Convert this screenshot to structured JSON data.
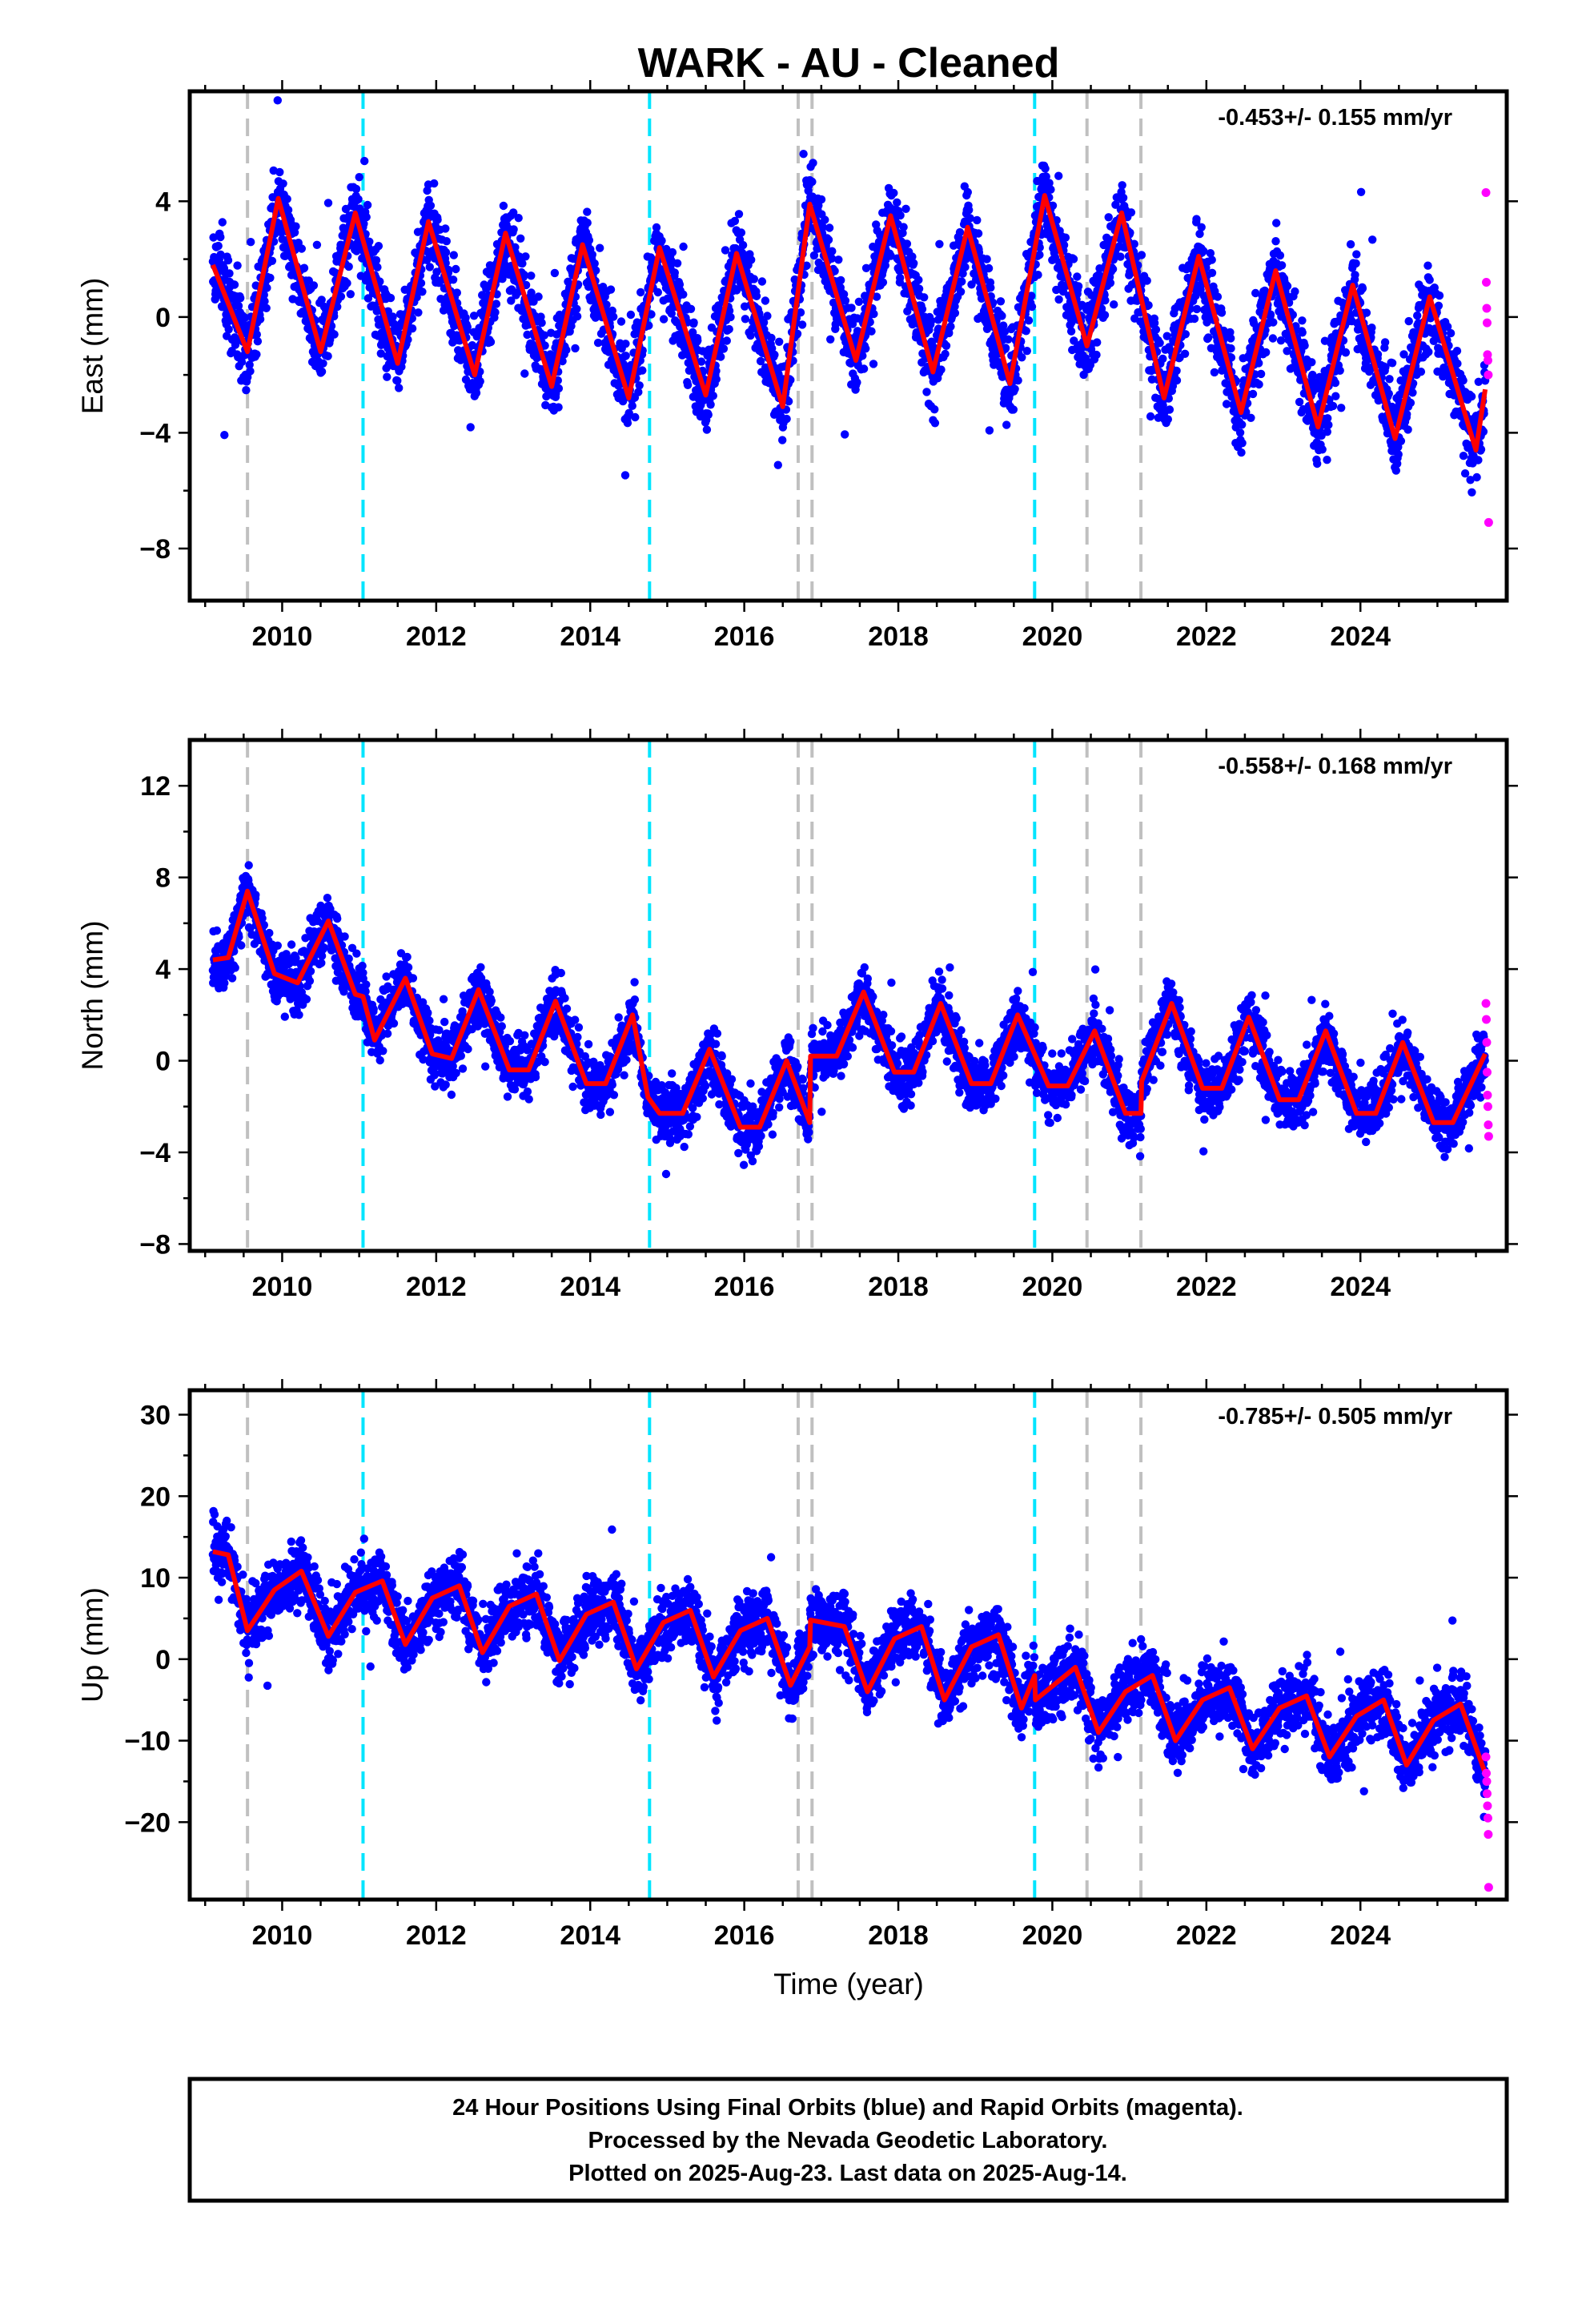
{
  "title": "WARK  - AU - Cleaned",
  "xlabel": "Time (year)",
  "x_tick_labels": [
    "2010",
    "2012",
    "2014",
    "2016",
    "2018",
    "2020",
    "2022",
    "2024"
  ],
  "footer": {
    "line1": "24 Hour Positions Using Final Orbits (blue) and Rapid Orbits (magenta).",
    "line2": "Processed by the Nevada Geodetic Laboratory.",
    "line3": "Plotted on 2025-Aug-23. Last data on 2025-Aug-14."
  },
  "colors": {
    "final_points": "#0000ff",
    "rapid_points": "#ff00ff",
    "model_line": "#ff0000",
    "antenna_change": "#c0c0c0",
    "earthquake": "#00e5ff"
  },
  "chart_data": [
    {
      "type": "scatter",
      "ylabel": "East (mm)",
      "rate_label": "-0.453+/- 0.155 mm/yr",
      "xlim": [
        2008.8,
        2025.9
      ],
      "ylim": [
        -9.8,
        7.8
      ],
      "y_ticks": [
        -8,
        -4,
        0,
        4
      ],
      "x_ticks": [
        2010,
        2012,
        2014,
        2016,
        2018,
        2020,
        2022,
        2024
      ],
      "data_start": 2009.1,
      "data_end": 2025.62,
      "trend_rate_mm_per_yr": -0.453,
      "seasonal_amplitude": 2.6,
      "noise_sigma": 1.25,
      "offsets": [
        {
          "epoch": 2016.85,
          "mm": 2.0
        }
      ],
      "model_curve": {
        "x": [
          2009.1,
          2009.55,
          2009.95,
          2010.5,
          2010.95,
          2011.5,
          2011.9,
          2012.5,
          2012.9,
          2013.5,
          2013.9,
          2014.5,
          2014.9,
          2015.5,
          2015.9,
          2016.5,
          2016.85,
          2017.45,
          2017.9,
          2018.45,
          2018.9,
          2019.45,
          2019.9,
          2020.45,
          2020.9,
          2021.45,
          2021.9,
          2022.45,
          2022.9,
          2023.45,
          2023.9,
          2024.45,
          2024.9,
          2025.5,
          2025.62
        ],
        "y": [
          1.8,
          -1.2,
          4.1,
          -1.2,
          3.6,
          -1.6,
          3.3,
          -2.0,
          2.9,
          -2.4,
          2.5,
          -2.8,
          2.4,
          -2.7,
          2.2,
          -3.1,
          3.9,
          -1.5,
          3.5,
          -1.9,
          3.1,
          -2.3,
          4.2,
          -1.0,
          3.6,
          -2.8,
          2.1,
          -3.3,
          1.6,
          -3.8,
          1.1,
          -4.2,
          0.7,
          -4.6,
          -2.5
        ]
      },
      "rapid_points": {
        "x": [
          2025.63,
          2025.635,
          2025.64,
          2025.645,
          2025.65,
          2025.655,
          2025.66,
          2025.665
        ],
        "y": [
          4.3,
          1.2,
          0.3,
          -0.2,
          -1.3,
          -1.5,
          -2.0,
          -7.1
        ]
      },
      "antenna_changes": [
        2009.55,
        2016.7,
        2016.88,
        2020.45,
        2021.15
      ],
      "earthquakes": [
        2011.05,
        2014.77,
        2019.77
      ]
    },
    {
      "type": "scatter",
      "ylabel": "North (mm)",
      "rate_label": "-0.558+/- 0.168 mm/yr",
      "xlim": [
        2008.8,
        2025.9
      ],
      "ylim": [
        -8.3,
        14.0
      ],
      "y_ticks": [
        -8,
        -4,
        0,
        4,
        8,
        12
      ],
      "x_ticks": [
        2010,
        2012,
        2014,
        2016,
        2018,
        2020,
        2022,
        2024
      ],
      "data_start": 2009.1,
      "data_end": 2025.62,
      "trend_rate_mm_per_yr": -0.558,
      "seasonal_amplitude": 1.8,
      "noise_sigma": 1.1,
      "offsets": [
        {
          "epoch": 2011.05,
          "mm": -1.8
        },
        {
          "epoch": 2016.85,
          "mm": 3.0
        },
        {
          "epoch": 2021.15,
          "mm": 1.2
        }
      ],
      "model_curve": {
        "x": [
          2009.1,
          2009.3,
          2009.55,
          2009.9,
          2010.2,
          2010.6,
          2010.95,
          2011.05,
          2011.2,
          2011.6,
          2011.95,
          2012.2,
          2012.55,
          2012.95,
          2013.2,
          2013.55,
          2013.95,
          2014.2,
          2014.55,
          2014.75,
          2014.9,
          2015.2,
          2015.55,
          2015.95,
          2016.2,
          2016.55,
          2016.85,
          2016.86,
          2017.2,
          2017.55,
          2017.95,
          2018.2,
          2018.55,
          2018.95,
          2019.2,
          2019.55,
          2019.95,
          2020.2,
          2020.55,
          2020.95,
          2021.15,
          2021.16,
          2021.55,
          2021.95,
          2022.2,
          2022.55,
          2022.95,
          2023.2,
          2023.55,
          2023.95,
          2024.2,
          2024.55,
          2024.95,
          2025.2,
          2025.62
        ],
        "y": [
          4.4,
          4.5,
          7.4,
          3.8,
          3.4,
          6.1,
          2.9,
          2.8,
          0.9,
          3.6,
          0.3,
          0.1,
          3.1,
          -0.4,
          -0.4,
          2.6,
          -1.0,
          -1.0,
          2.0,
          -1.6,
          -2.3,
          -2.3,
          0.5,
          -2.9,
          -2.9,
          0.0,
          -2.7,
          0.2,
          0.2,
          3.0,
          -0.5,
          -0.5,
          2.5,
          -1.0,
          -1.0,
          2.0,
          -1.1,
          -1.1,
          1.3,
          -2.3,
          -2.3,
          -0.9,
          2.5,
          -1.2,
          -1.2,
          1.9,
          -1.7,
          -1.7,
          1.3,
          -2.3,
          -2.3,
          0.8,
          -2.7,
          -2.7,
          0.3
        ]
      },
      "rapid_points": {
        "x": [
          2025.63,
          2025.635,
          2025.64,
          2025.645,
          2025.65,
          2025.655,
          2025.66,
          2025.665
        ],
        "y": [
          2.5,
          1.8,
          0.8,
          -0.5,
          -1.5,
          -2.0,
          -2.8,
          -3.3
        ]
      },
      "antenna_changes": [
        2009.55,
        2016.7,
        2016.88,
        2020.45,
        2021.15
      ],
      "earthquakes": [
        2011.05,
        2014.77,
        2019.77
      ]
    },
    {
      "type": "scatter",
      "ylabel": "Up (mm)",
      "rate_label": "-0.785+/- 0.505 mm/yr",
      "xlim": [
        2008.8,
        2025.9
      ],
      "ylim": [
        -29.5,
        33.0
      ],
      "y_ticks": [
        -20,
        -10,
        0,
        10,
        20,
        30
      ],
      "x_ticks": [
        2010,
        2012,
        2014,
        2016,
        2018,
        2020,
        2022,
        2024
      ],
      "data_start": 2009.1,
      "data_end": 2025.62,
      "trend_rate_mm_per_yr": -0.785,
      "seasonal_amplitude": 4.0,
      "noise_sigma": 3.4,
      "offsets": [
        {
          "epoch": 2016.85,
          "mm": 3.0
        },
        {
          "epoch": 2019.77,
          "mm": 2.0
        }
      ],
      "model_curve": {
        "x": [
          2009.1,
          2009.3,
          2009.55,
          2009.9,
          2010.25,
          2010.6,
          2010.95,
          2011.3,
          2011.6,
          2011.95,
          2012.3,
          2012.6,
          2012.95,
          2013.3,
          2013.6,
          2013.95,
          2014.3,
          2014.6,
          2014.95,
          2015.3,
          2015.6,
          2015.95,
          2016.3,
          2016.6,
          2016.85,
          2016.86,
          2017.3,
          2017.6,
          2017.95,
          2018.3,
          2018.6,
          2018.95,
          2019.3,
          2019.6,
          2019.77,
          2019.78,
          2020.3,
          2020.6,
          2020.95,
          2021.3,
          2021.6,
          2021.95,
          2022.3,
          2022.6,
          2022.95,
          2023.3,
          2023.6,
          2023.95,
          2024.3,
          2024.6,
          2024.95,
          2025.3,
          2025.62
        ],
        "y": [
          13.2,
          12.8,
          3.5,
          8.5,
          10.8,
          2.8,
          8.2,
          9.6,
          1.8,
          7.5,
          9.0,
          0.8,
          6.5,
          8.0,
          -0.2,
          5.5,
          7.0,
          -1.2,
          4.5,
          6.0,
          -2.2,
          3.5,
          5.0,
          -3.2,
          1.5,
          4.8,
          4.0,
          -4.0,
          2.5,
          4.0,
          -5.0,
          1.5,
          3.0,
          -6.0,
          -2.0,
          -5.0,
          -1.0,
          -9.0,
          -4.0,
          -2.0,
          -10.0,
          -5.0,
          -3.5,
          -11.0,
          -6.0,
          -4.5,
          -12.0,
          -7.0,
          -5.0,
          -13.0,
          -7.5,
          -5.5,
          -14.0
        ]
      },
      "rapid_points": {
        "x": [
          2025.63,
          2025.635,
          2025.64,
          2025.645,
          2025.65,
          2025.655,
          2025.66,
          2025.665
        ],
        "y": [
          -12.0,
          -14.0,
          -15.0,
          -16.5,
          -18.0,
          -19.5,
          -21.5,
          -28.0
        ]
      },
      "antenna_changes": [
        2009.55,
        2016.7,
        2016.88,
        2020.45,
        2021.15
      ],
      "earthquakes": [
        2011.05,
        2014.77,
        2019.77
      ]
    }
  ]
}
